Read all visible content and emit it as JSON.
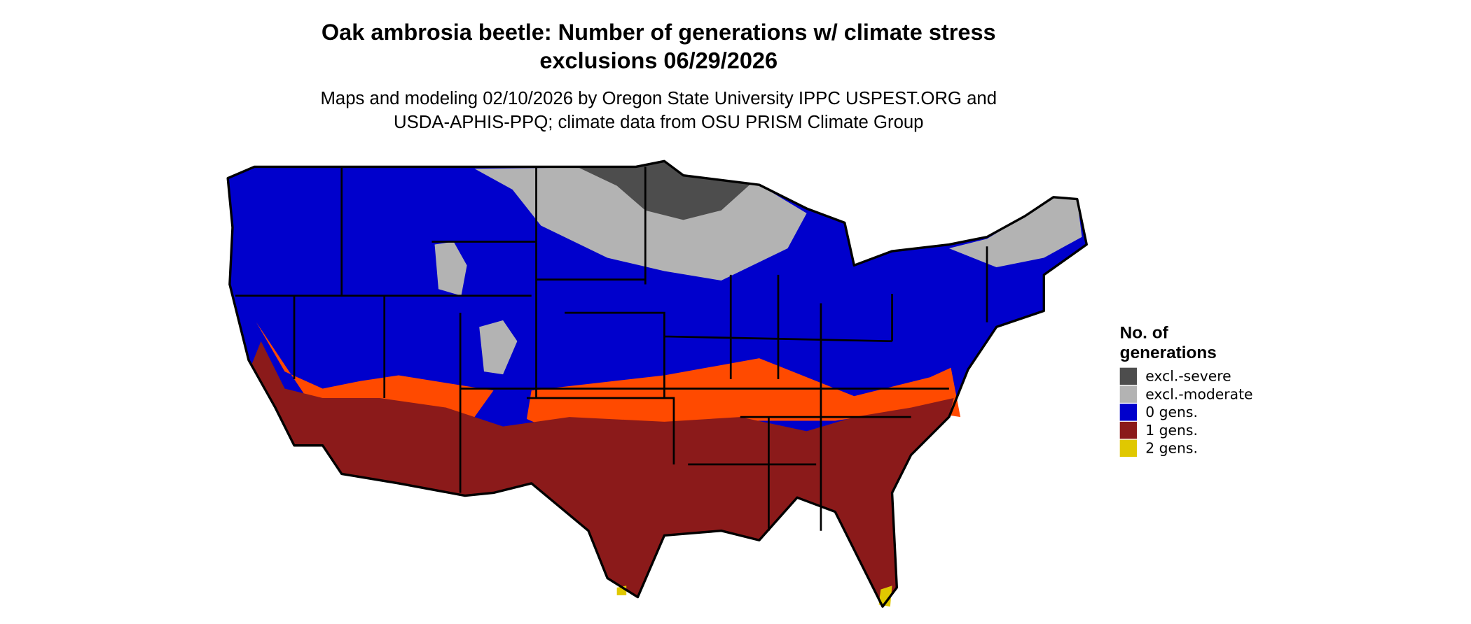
{
  "header": {
    "title": [
      "Oak ambrosia beetle: Number of generations w/ climate stress",
      "exclusions 06/29/2026"
    ],
    "subtitle": [
      "Maps and modeling 02/10/2026 by Oregon State University IPPC USPEST.ORG and",
      "USDA-APHIS-PPQ; climate data from OSU PRISM Climate Group"
    ]
  },
  "legend": {
    "title": [
      "No. of",
      "generations"
    ],
    "items": [
      {
        "label": "excl.-severe",
        "color": "#4d4d4d"
      },
      {
        "label": "excl.-moderate",
        "color": "#b3b3b3"
      },
      {
        "label": "0 gens.",
        "color": "#0000cc"
      },
      {
        "label": "1 gens.",
        "color": "#8b1a1a"
      },
      {
        "label": "2 gens.",
        "color": "#e0c800"
      }
    ]
  }
}
